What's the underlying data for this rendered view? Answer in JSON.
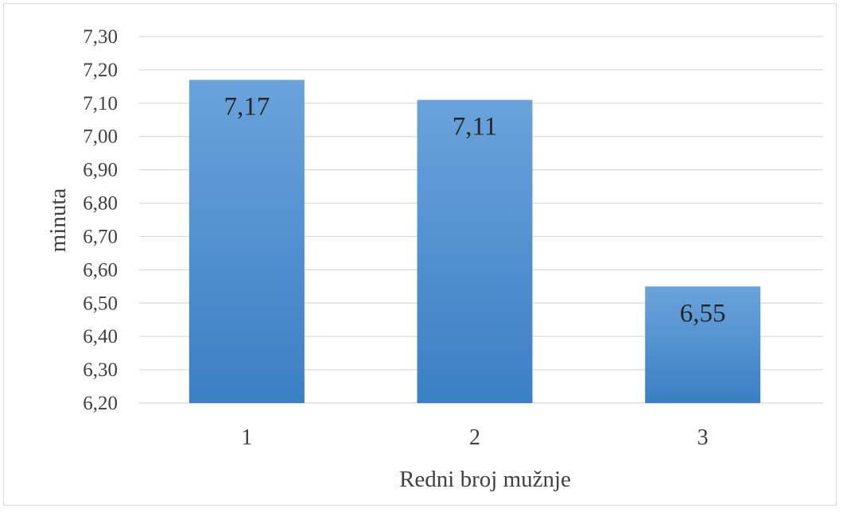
{
  "chart_data": {
    "type": "bar",
    "categories": [
      "1",
      "2",
      "3"
    ],
    "values": [
      7.17,
      7.11,
      6.55
    ],
    "data_labels": [
      "7,17",
      "7,11",
      "6,55"
    ],
    "title": "",
    "xlabel": "Redni broj mužnje",
    "ylabel": "minuta",
    "ylim": [
      6.2,
      7.3
    ],
    "y_ticks": [
      "6,20",
      "6,30",
      "6,40",
      "6,50",
      "6,60",
      "6,70",
      "6,80",
      "6,90",
      "7,00",
      "7,10",
      "7,20",
      "7,30"
    ],
    "grid": true,
    "legend": "none",
    "colors": {
      "bar_light": "#6aa3db",
      "bar_dark": "#3b7fc4",
      "grid": "#d9d9d9"
    }
  }
}
